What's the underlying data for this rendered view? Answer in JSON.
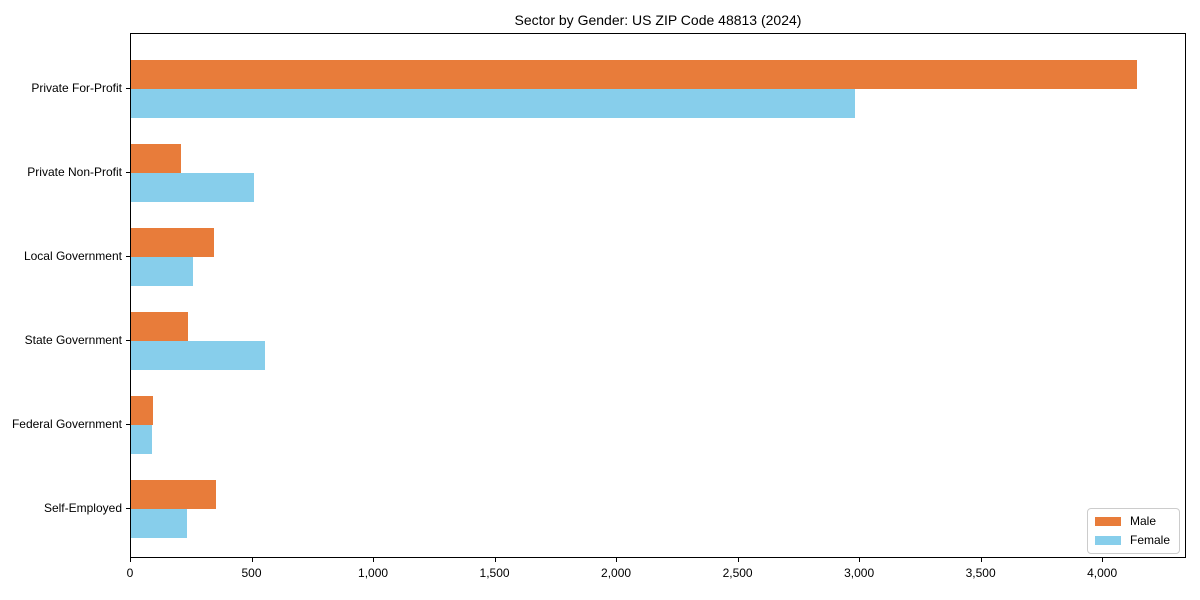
{
  "chart_data": {
    "type": "bar",
    "orientation": "horizontal",
    "title": "Sector by Gender: US ZIP Code 48813 (2024)",
    "categories": [
      "Private For-Profit",
      "Private Non-Profit",
      "Local Government",
      "State Government",
      "Federal Government",
      "Self-Employed"
    ],
    "series": [
      {
        "name": "Male",
        "color": "#e87c3a",
        "values": [
          4140,
          205,
          340,
          235,
          90,
          350
        ]
      },
      {
        "name": "Female",
        "color": "#87ceeb",
        "values": [
          2980,
          505,
          255,
          550,
          85,
          230
        ]
      }
    ],
    "xlabel": "",
    "ylabel": "",
    "xlim": [
      0,
      4345
    ],
    "x_ticks": [
      0,
      500,
      1000,
      1500,
      2000,
      2500,
      3000,
      3500,
      4000
    ],
    "x_tick_labels": [
      "0",
      "500",
      "1,000",
      "1,500",
      "2,000",
      "2,500",
      "3,000",
      "3,500",
      "4,000"
    ],
    "grid": false,
    "legend": {
      "position": "lower-right",
      "items": [
        "Male",
        "Female"
      ]
    }
  },
  "colors": {
    "male": "#e87c3a",
    "female": "#87ceeb",
    "axis": "#000000",
    "text": "#000000",
    "legend_border": "#cccccc",
    "background": "#ffffff"
  }
}
